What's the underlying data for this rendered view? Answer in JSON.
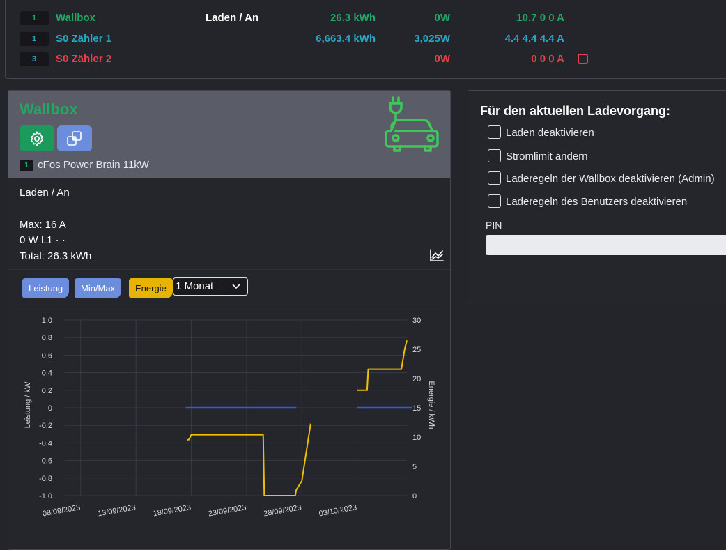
{
  "summary": {
    "rows": [
      {
        "badge": "1",
        "name": "Wallbox",
        "state": "Laden / An",
        "energy": "26.3 kWh",
        "power": "0W",
        "current": "10.7 0 0 A"
      },
      {
        "badge": "1",
        "name": "S0 Zähler 1",
        "state": "",
        "energy": "6,663.4 kWh",
        "power": "3,025W",
        "current": "4.4 4.4 4.4 A"
      },
      {
        "badge": "3",
        "name": "S0 Zähler 2",
        "state": "",
        "energy": "",
        "power": "0W",
        "current": "0 0 0 A"
      }
    ],
    "colors": {
      "wallbox": "#22a865",
      "meter1": "#26a8c0",
      "meter2": "#e8404a"
    }
  },
  "wallbox": {
    "title": "Wallbox",
    "icons": {
      "settings": "gear-icon",
      "detach": "window-restore-icon",
      "device": "car-charging-icon",
      "chart": "line-chart-icon"
    },
    "model_badge": "1",
    "model": "cFos Power Brain 11kW",
    "state": "Laden / An",
    "max": "Max: 16 A",
    "phase": "0 W L1 · ·",
    "total": "Total: 26.3 kWh",
    "tabs": [
      "Leistung",
      "Min/Max",
      "Energie"
    ],
    "active_tab": "Energie",
    "range": "1 Monat"
  },
  "panel": {
    "title": "Für den aktuellen Ladevorgang:",
    "options": [
      "Laden deaktivieren",
      "Stromlimit ändern",
      "Laderegeln der Wallbox deaktivieren (Admin)",
      "Laderegeln des Benutzers deaktivieren"
    ],
    "pin_label": "PIN",
    "pin_value": ""
  },
  "chart_data": {
    "type": "line",
    "ylabel": "Leistung / kW",
    "y2label": "Energie / kWh",
    "ylim": [
      -1.0,
      1.0
    ],
    "y2lim": [
      0,
      30
    ],
    "y_ticks": [
      "1.0",
      "0.8",
      "0.6",
      "0.4",
      "0.2",
      "0",
      "-0.2",
      "-0.4",
      "-0.6",
      "-0.8",
      "-1.0"
    ],
    "y2_ticks": [
      "30",
      "25",
      "20",
      "15",
      "10",
      "5",
      "0"
    ],
    "x_ticks": [
      "08/09/2023",
      "13/09/2023",
      "18/09/2023",
      "23/09/2023",
      "28/09/2023",
      "03/10/2023"
    ],
    "x_tick_days": [
      0,
      5,
      10,
      15,
      20,
      25
    ],
    "xlim": [
      -1.5,
      29.5
    ],
    "grid": true,
    "colors": {
      "power": "#3a5cc0",
      "energy": "#f0c000"
    },
    "series": [
      {
        "axis": "left",
        "segments": [
          {
            "x": [
              9.5,
              19.5
            ],
            "y": [
              0,
              0
            ]
          },
          {
            "x": [
              25.0,
              30.0
            ],
            "y": [
              0,
              0
            ]
          }
        ]
      },
      {
        "axis": "right",
        "segments": [
          {
            "x": [
              9.6,
              9.8,
              10.0,
              12.0,
              15.0,
              16.0,
              16.5,
              16.6,
              17.0,
              18.0,
              19.4,
              19.5,
              20.0,
              20.8
            ],
            "y": [
              9.5,
              9.6,
              10.4,
              10.4,
              10.4,
              10.4,
              10.4,
              0,
              0,
              0,
              0,
              1.0,
              2.5,
              12.3
            ]
          },
          {
            "x": [
              25.0,
              25.9,
              26.0,
              26.5,
              27.0,
              29.0,
              29.3,
              29.5
            ],
            "y": [
              18.0,
              18.0,
              21.6,
              21.6,
              21.6,
              21.6,
              25.0,
              26.5
            ]
          }
        ]
      }
    ]
  }
}
